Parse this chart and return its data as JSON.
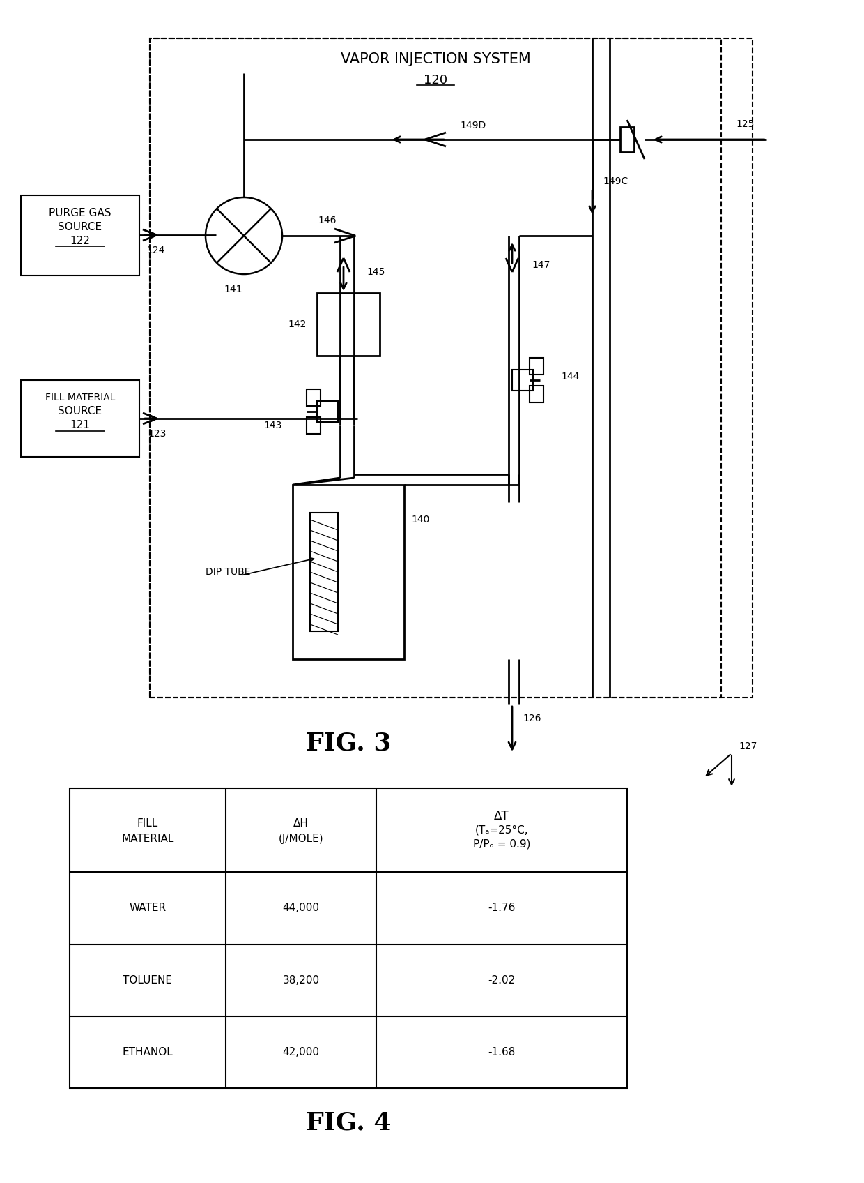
{
  "bg_color": "#ffffff",
  "fig3_label": "FIG. 3",
  "fig4_label": "FIG. 4",
  "table_data": {
    "col0_header": [
      "FILL",
      "MATERIAL"
    ],
    "col1_header": [
      "ΔH",
      "(J/MOLE)"
    ],
    "col2_header": [
      "ΔT",
      "(Tₐ=25°C,",
      "P/Pₒ = 0.9)"
    ],
    "rows": [
      [
        "WATER",
        "44,000",
        "-1.76"
      ],
      [
        "TOLUENE",
        "38,200",
        "-2.02"
      ],
      [
        "ETHANOL",
        "42,000",
        "-1.68"
      ]
    ]
  }
}
